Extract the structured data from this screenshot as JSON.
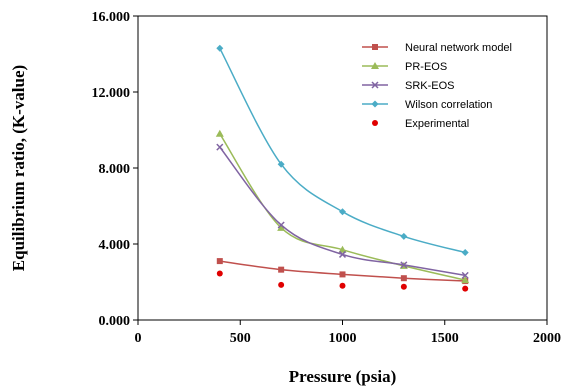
{
  "chart_data": {
    "type": "line",
    "xlabel": "Pressure (psia)",
    "ylabel": "Equilibrium ratio, (K-value)",
    "xlim": [
      0,
      2000
    ],
    "ylim": [
      0,
      16
    ],
    "x_ticks": [
      0,
      500,
      1000,
      1500,
      2000
    ],
    "y_ticks": [
      0,
      4,
      8,
      12,
      16
    ],
    "x_tick_labels": [
      "0",
      "500",
      "1000",
      "1500",
      "2000"
    ],
    "y_tick_labels": [
      "0.000",
      "4.000",
      "8.000",
      "12.000",
      "16.000"
    ],
    "grid": false,
    "legend_position": "top-right",
    "series": [
      {
        "name": "Neural network model",
        "color": "#c0504d",
        "marker": "square",
        "smooth": true,
        "x": [
          400,
          700,
          1000,
          1300,
          1600
        ],
        "y": [
          3.1,
          2.65,
          2.4,
          2.2,
          2.05
        ]
      },
      {
        "name": "PR-EOS",
        "color": "#9bbb59",
        "marker": "triangle",
        "smooth": true,
        "x": [
          400,
          700,
          1000,
          1300,
          1600
        ],
        "y": [
          9.8,
          4.85,
          3.7,
          2.85,
          2.1
        ]
      },
      {
        "name": "SRK-EOS",
        "color": "#8064a2",
        "marker": "x",
        "smooth": true,
        "x": [
          400,
          700,
          1000,
          1300,
          1600
        ],
        "y": [
          9.1,
          5.0,
          3.45,
          2.9,
          2.35
        ]
      },
      {
        "name": "Wilson correlation",
        "color": "#4bacc6",
        "marker": "diamond",
        "smooth": true,
        "x": [
          400,
          700,
          1000,
          1300,
          1600
        ],
        "y": [
          14.3,
          8.2,
          5.7,
          4.4,
          3.55
        ]
      },
      {
        "name": "Experimental",
        "color": "#e00000",
        "marker": "circle",
        "smooth": false,
        "line": false,
        "x": [
          400,
          700,
          1000,
          1300,
          1600
        ],
        "y": [
          2.45,
          1.85,
          1.8,
          1.75,
          1.65
        ]
      }
    ]
  }
}
